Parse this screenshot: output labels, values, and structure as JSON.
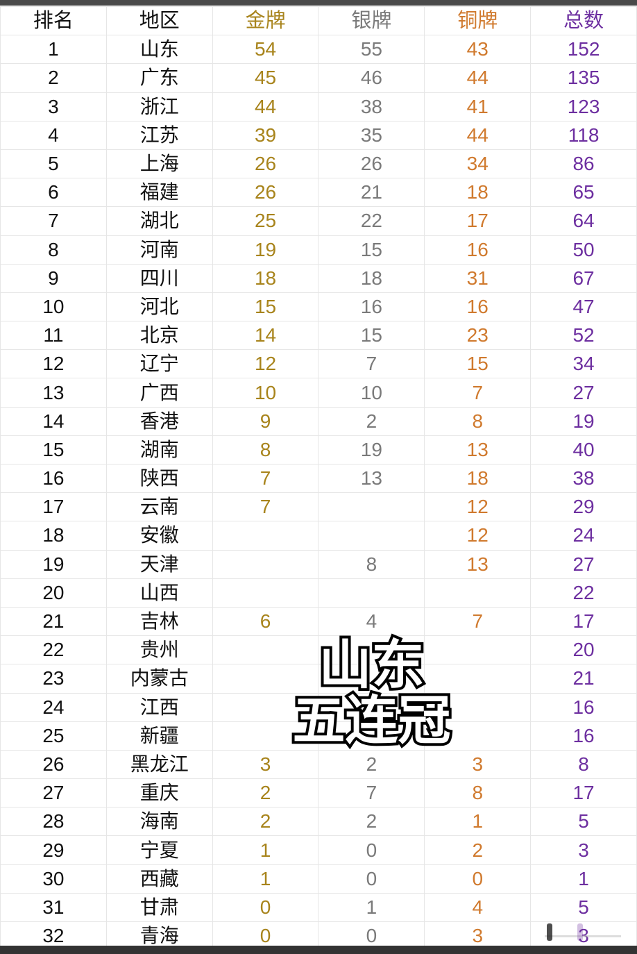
{
  "headers": [
    "排名",
    "地区",
    "金牌",
    "银牌",
    "铜牌",
    "总数"
  ],
  "colors": {
    "gold": "#a8841c",
    "silver": "#7a7a7a",
    "bronze": "#d07a2e",
    "total": "#6d2fa0"
  },
  "rows": [
    [
      "1",
      "山东",
      "54",
      "55",
      "43",
      "152"
    ],
    [
      "2",
      "广东",
      "45",
      "46",
      "44",
      "135"
    ],
    [
      "3",
      "浙江",
      "44",
      "38",
      "41",
      "123"
    ],
    [
      "4",
      "江苏",
      "39",
      "35",
      "44",
      "118"
    ],
    [
      "5",
      "上海",
      "26",
      "26",
      "34",
      "86"
    ],
    [
      "6",
      "福建",
      "26",
      "21",
      "18",
      "65"
    ],
    [
      "7",
      "湖北",
      "25",
      "22",
      "17",
      "64"
    ],
    [
      "8",
      "河南",
      "19",
      "15",
      "16",
      "50"
    ],
    [
      "9",
      "四川",
      "18",
      "18",
      "31",
      "67"
    ],
    [
      "10",
      "河北",
      "15",
      "16",
      "16",
      "47"
    ],
    [
      "11",
      "北京",
      "14",
      "15",
      "23",
      "52"
    ],
    [
      "12",
      "辽宁",
      "12",
      "7",
      "15",
      "34"
    ],
    [
      "13",
      "广西",
      "10",
      "10",
      "7",
      "27"
    ],
    [
      "14",
      "香港",
      "9",
      "2",
      "8",
      "19"
    ],
    [
      "15",
      "湖南",
      "8",
      "19",
      "13",
      "40"
    ],
    [
      "16",
      "陕西",
      "7",
      "13",
      "18",
      "38"
    ],
    [
      "17",
      "云南",
      "7",
      "",
      "12",
      "29"
    ],
    [
      "18",
      "安徽",
      "",
      "",
      "12",
      "24"
    ],
    [
      "19",
      "天津",
      "",
      "8",
      "13",
      "27"
    ],
    [
      "20",
      "山西",
      "",
      "",
      "",
      "22"
    ],
    [
      "21",
      "吉林",
      "6",
      "4",
      "7",
      "17"
    ],
    [
      "22",
      "贵州",
      "",
      "",
      "",
      "20"
    ],
    [
      "23",
      "内蒙古",
      "",
      "",
      "",
      "21"
    ],
    [
      "24",
      "江西",
      "",
      "",
      "",
      "16"
    ],
    [
      "25",
      "新疆",
      "",
      "",
      "",
      "16"
    ],
    [
      "26",
      "黑龙江",
      "3",
      "2",
      "3",
      "8"
    ],
    [
      "27",
      "重庆",
      "2",
      "7",
      "8",
      "17"
    ],
    [
      "28",
      "海南",
      "2",
      "2",
      "1",
      "5"
    ],
    [
      "29",
      "宁夏",
      "1",
      "0",
      "2",
      "3"
    ],
    [
      "30",
      "西藏",
      "1",
      "0",
      "0",
      "1"
    ],
    [
      "31",
      "甘肃",
      "0",
      "1",
      "4",
      "5"
    ],
    [
      "32",
      "青海",
      "0",
      "0",
      "3",
      "3"
    ]
  ],
  "overlay": {
    "line1": "山东",
    "line2": "五连冠"
  }
}
